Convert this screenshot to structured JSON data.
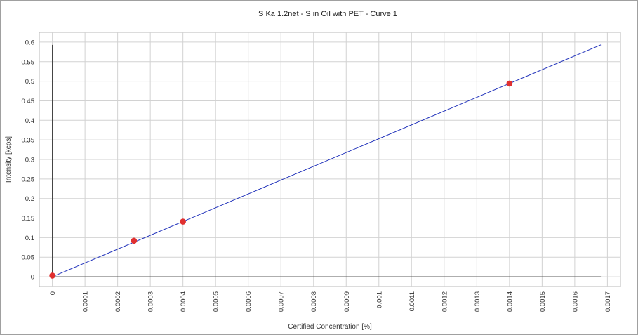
{
  "chart_data": {
    "type": "scatter",
    "title": "S Ka 1.2net - S in Oil with PET - Curve 1",
    "xlabel": "Certified Concentration [%]",
    "ylabel": "Intensity [kcps]",
    "xlim": [
      -4e-05,
      0.00174
    ],
    "ylim": [
      -0.025,
      0.625
    ],
    "xticks": [
      0,
      0.0001,
      0.0002,
      0.0003,
      0.0004,
      0.0005,
      0.0006,
      0.0007,
      0.0008,
      0.0009,
      0.001,
      0.0011,
      0.0012,
      0.0013,
      0.0014,
      0.0015,
      0.0016,
      0.0017
    ],
    "xtick_labels": [
      "0",
      "0.0001",
      "0.0002",
      "0.0003",
      "0.0004",
      "0.0005",
      "0.0006",
      "0.0007",
      "0.0008",
      "0.0009",
      "0.001",
      "0.0011",
      "0.0012",
      "0.0013",
      "0.0014",
      "0.0015",
      "0.0016",
      "0.0017"
    ],
    "yticks": [
      0,
      0.05,
      0.1,
      0.15,
      0.2,
      0.25,
      0.3,
      0.35,
      0.4,
      0.45,
      0.5,
      0.55,
      0.6
    ],
    "ytick_labels": [
      "0",
      "0.05",
      "0.1",
      "0.15",
      "0.2",
      "0.25",
      "0.3",
      "0.35",
      "0.4",
      "0.45",
      "0.5",
      "0.55",
      "0.6"
    ],
    "grid": true,
    "points": {
      "x": [
        0,
        0.00025,
        0.0004,
        0.0014
      ],
      "y": [
        0.003,
        0.092,
        0.141,
        0.494
      ]
    },
    "fit_line": {
      "x": [
        0,
        0.00168
      ],
      "y": [
        0,
        0.593
      ]
    },
    "x_axis_line": {
      "x": [
        0,
        0.00168
      ],
      "y": [
        0,
        0
      ]
    },
    "y_axis_line": {
      "x": [
        0,
        0
      ],
      "y": [
        0,
        0.593
      ]
    },
    "colors": {
      "points": "#e03030",
      "fit_line": "#2233bb",
      "grid": "#d2d2d2",
      "axis_lines": "#333333"
    }
  }
}
